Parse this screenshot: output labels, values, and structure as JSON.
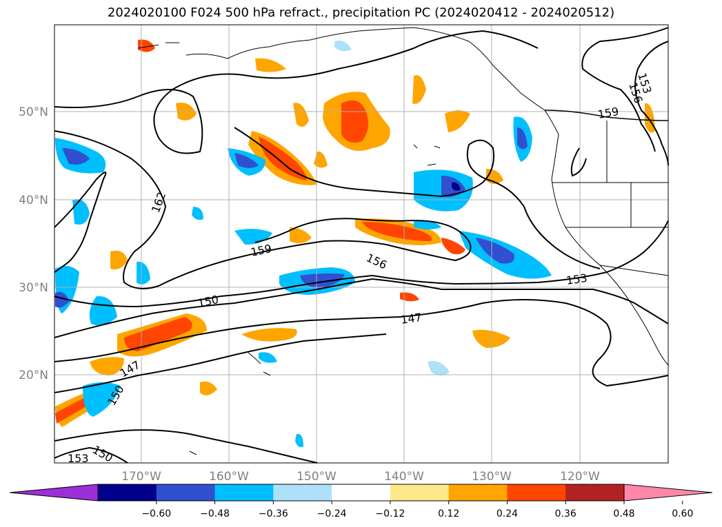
{
  "title": "2024020100 F024 500 hPa refract., precipitation PC (2024020412 - 2024020512)",
  "map": {
    "lon_ticks": [
      {
        "label": "170°W",
        "value": -170
      },
      {
        "label": "160°W",
        "value": -160
      },
      {
        "label": "150°W",
        "value": -150
      },
      {
        "label": "140°W",
        "value": -140
      },
      {
        "label": "130°W",
        "value": -130
      },
      {
        "label": "120°W",
        "value": -120
      }
    ],
    "lat_ticks": [
      {
        "label": "50°N",
        "value": 50
      },
      {
        "label": "40°N",
        "value": 40
      },
      {
        "label": "30°N",
        "value": 30
      },
      {
        "label": "20°N",
        "value": 20
      }
    ],
    "contour_labels": [
      "162",
      "159",
      "156",
      "153",
      "150",
      "147",
      "153",
      "156",
      "159",
      "150",
      "147",
      "153",
      "150"
    ]
  },
  "colorbar": {
    "labels": [
      "−0.60",
      "−0.48",
      "−0.36",
      "−0.24",
      "−0.12",
      "0.12",
      "0.24",
      "0.36",
      "0.48",
      "0.60"
    ],
    "colors": [
      "#9b30d8",
      "#00008b",
      "#3050d0",
      "#00bfff",
      "#aee0fa",
      "#ffffff",
      "#fde98a",
      "#ffa500",
      "#ff4500",
      "#b22222",
      "#ff88aa"
    ]
  }
}
